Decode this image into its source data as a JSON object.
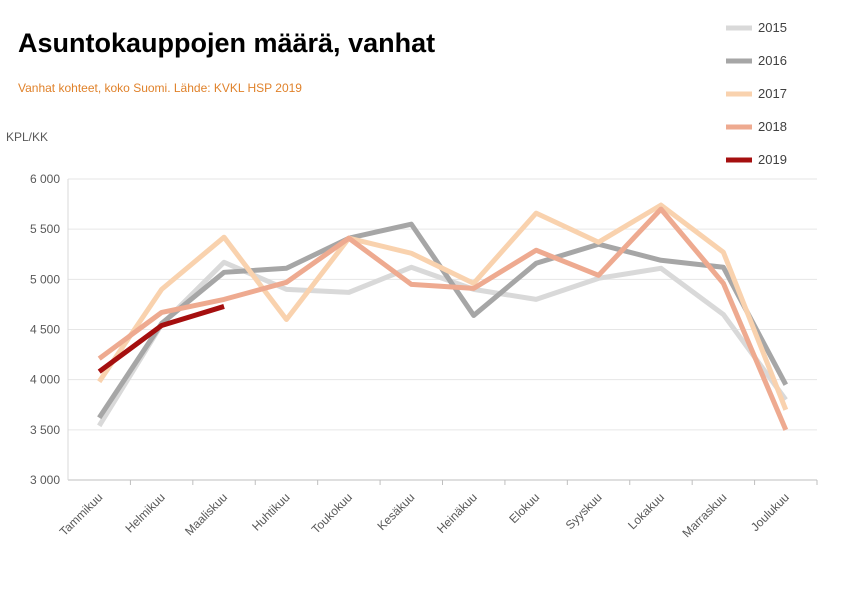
{
  "chart_data": {
    "type": "line",
    "title": "Asuntokauppojen määrä, vanhat",
    "subtitle": "Vanhat kohteet, koko Suomi. Lähde: KVKL HSP 2019",
    "y_label": "KPL/KK",
    "categories": [
      "Tammikuu",
      "Helmikuu",
      "Maaliskuu",
      "Huhtikuu",
      "Toukokuu",
      "Kesäkuu",
      "Heinäkuu",
      "Elokuu",
      "Syyskuu",
      "Lokakuu",
      "Marraskuu",
      "Joulukuu"
    ],
    "series": [
      {
        "name": "2015",
        "color": "#d9d9d9",
        "values": [
          3540,
          4550,
          5170,
          4900,
          4870,
          5120,
          4900,
          4800,
          5010,
          5110,
          4650,
          3800
        ]
      },
      {
        "name": "2016",
        "color": "#a6a6a6",
        "values": [
          3620,
          4560,
          5070,
          5110,
          5410,
          5550,
          4640,
          5160,
          5350,
          5190,
          5120,
          3950
        ]
      },
      {
        "name": "2017",
        "color": "#f9d2ae",
        "values": [
          3980,
          4900,
          5420,
          4600,
          5410,
          5260,
          4960,
          5660,
          5370,
          5740,
          5270,
          3700
        ]
      },
      {
        "name": "2018",
        "color": "#eeaa90",
        "values": [
          4210,
          4670,
          4800,
          4970,
          5410,
          4950,
          4910,
          5290,
          5040,
          5700,
          4960,
          3500
        ]
      },
      {
        "name": "2019",
        "color": "#a50f0f",
        "values": [
          4080,
          4540,
          4730,
          null,
          null,
          null,
          null,
          null,
          null,
          null,
          null,
          null
        ]
      }
    ],
    "ylim": [
      3000,
      6000
    ],
    "yticks": [
      {
        "value": 3000,
        "label": "3 000"
      },
      {
        "value": 3500,
        "label": "3 500"
      },
      {
        "value": 4000,
        "label": "4 000"
      },
      {
        "value": 4500,
        "label": "4 500"
      },
      {
        "value": 5000,
        "label": "5 000"
      },
      {
        "value": 5500,
        "label": "5 500"
      },
      {
        "value": 6000,
        "label": "6 000"
      }
    ],
    "grid": true,
    "legend": "top-right"
  }
}
